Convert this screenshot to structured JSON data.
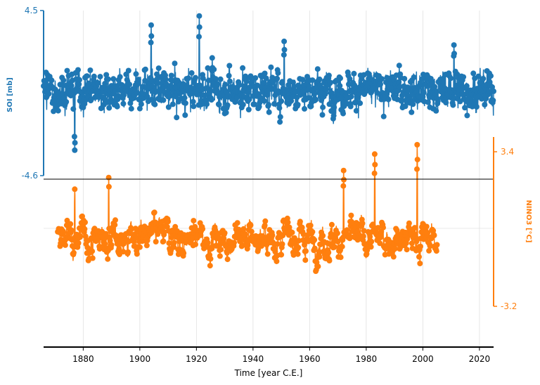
{
  "chart_data": [
    {
      "type": "line",
      "panel": "top",
      "style": "stem line with circle markers",
      "series": [
        {
          "name": "SOI",
          "color": "#1f77b4"
        }
      ],
      "ylabel": "SOI [mb]",
      "ylim": [
        -4.6,
        4.5
      ],
      "yticks": [
        -4.6,
        4.5
      ],
      "ytick_labels": [
        "-4.6",
        "4.5"
      ],
      "yaxis_side": "left",
      "xrange": [
        1866,
        2025
      ],
      "value_range_observed": [
        -4.0,
        4.2
      ],
      "notable_points": [
        {
          "x": 1921,
          "y": 4.2
        },
        {
          "x": 1904,
          "y": 3.7
        },
        {
          "x": 1877,
          "y": -3.2
        },
        {
          "x": 1951,
          "y": 2.8
        },
        {
          "x": 2011,
          "y": 2.6
        }
      ]
    },
    {
      "type": "line",
      "panel": "bottom",
      "style": "stem line with circle markers",
      "series": [
        {
          "name": "NINO3",
          "color": "#ff7f0e"
        }
      ],
      "ylabel": "NINO3 [°C]",
      "ylim": [
        -3.2,
        3.4
      ],
      "yticks": [
        -3.2,
        3.4
      ],
      "ytick_labels": [
        "-3.2",
        "3.4"
      ],
      "yaxis_side": "right",
      "xrange": [
        1871,
        2005
      ],
      "value_range_observed": [
        -1.7,
        3.7
      ],
      "notable_points": [
        {
          "x": 1877,
          "y": 1.8
        },
        {
          "x": 1983,
          "y": 3.3
        },
        {
          "x": 1998,
          "y": 3.7
        },
        {
          "x": 1972,
          "y": 2.6
        },
        {
          "x": 1889,
          "y": 2.3
        }
      ]
    }
  ],
  "x_axis": {
    "label": "Time [year C.E.]",
    "ticks": [
      1880,
      1900,
      1920,
      1940,
      1960,
      1980,
      2000,
      2020
    ],
    "range": [
      1866,
      2025
    ],
    "grid": true
  },
  "colors": {
    "soi": "#1f77b4",
    "nino3": "#ff7f0e",
    "grid": "#e0e0e0",
    "axis": "#000000"
  }
}
